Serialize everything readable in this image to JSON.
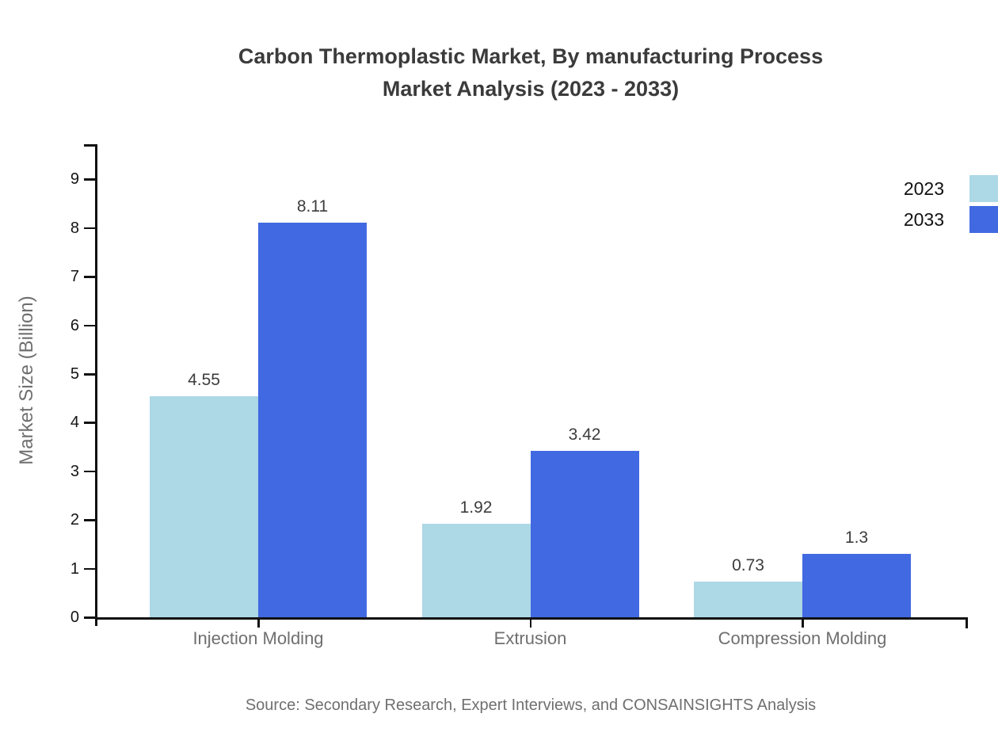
{
  "chart_data": {
    "type": "bar",
    "title": "Carbon Thermoplastic Market, By manufacturing Process",
    "subtitle": "Market Analysis (2023 - 2033)",
    "ylabel": "Market Size (Billion)",
    "xlabel": "",
    "categories": [
      "Injection Molding",
      "Extrusion",
      "Compression Molding"
    ],
    "series": [
      {
        "name": "2023",
        "color": "#ADD8E6",
        "values": [
          4.55,
          1.92,
          0.73
        ]
      },
      {
        "name": "2033",
        "color": "#4169E1",
        "values": [
          8.11,
          3.42,
          1.3
        ]
      }
    ],
    "ylim": [
      0,
      9
    ],
    "ytick_step": 1,
    "yticks": [
      0,
      1,
      2,
      3,
      4,
      5,
      6,
      7,
      8,
      9
    ],
    "grid": false,
    "bar_value_labels": true,
    "legend_position": "top-right"
  },
  "source_note": "Source: Secondary Research, Expert Interviews, and CONSAINSIGHTS Analysis"
}
